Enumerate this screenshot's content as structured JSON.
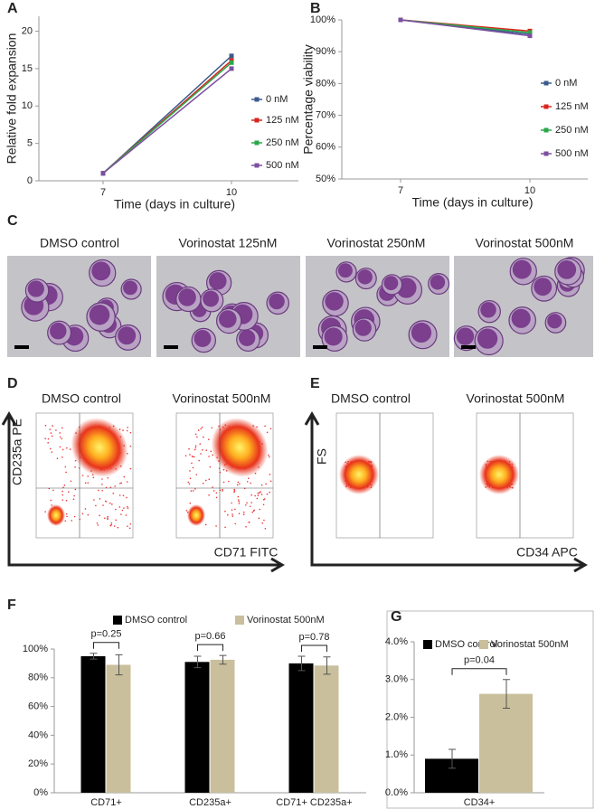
{
  "chart_data": [
    {
      "type": "line",
      "label": "A",
      "xlabel": "Time (days in culture)",
      "ylabel": "Relative fold expansion",
      "categories": [
        "7",
        "10"
      ],
      "ylim": [
        0,
        22
      ],
      "yticks": [
        0,
        5,
        10,
        15,
        20
      ],
      "series": [
        {
          "name": "0 nM",
          "color": "#3a5b8c",
          "values": [
            1,
            16.7
          ]
        },
        {
          "name": "125 nM",
          "color": "#d9261c",
          "values": [
            1,
            16.1
          ]
        },
        {
          "name": "250 nM",
          "color": "#2aa84a",
          "values": [
            1,
            15.8
          ]
        },
        {
          "name": "500 nM",
          "color": "#7e4fa0",
          "values": [
            1,
            15.0
          ]
        }
      ]
    },
    {
      "type": "line",
      "label": "B",
      "xlabel": "Time (days in culture)",
      "ylabel": "Percentage viability",
      "categories": [
        "7",
        "10"
      ],
      "ylim": [
        50,
        100
      ],
      "yticks": [
        {
          "value": 50,
          "label": "50%"
        },
        {
          "value": 60,
          "label": "60%"
        },
        {
          "value": 70,
          "label": "70%"
        },
        {
          "value": 80,
          "label": "80%"
        },
        {
          "value": 90,
          "label": "90%"
        },
        {
          "value": 100,
          "label": "100%"
        }
      ],
      "series": [
        {
          "name": "0 nM",
          "color": "#3a5b8c",
          "values": [
            100,
            95.5
          ]
        },
        {
          "name": "125 nM",
          "color": "#d9261c",
          "values": [
            100,
            96.5
          ]
        },
        {
          "name": "250 nM",
          "color": "#2aa84a",
          "values": [
            100,
            96
          ]
        },
        {
          "name": "500 nM",
          "color": "#7e4fa0",
          "values": [
            100,
            95
          ]
        }
      ]
    },
    {
      "type": "bar",
      "label": "F",
      "categories": [
        "CD71+",
        "CD235a+",
        "CD71+ CD235a+"
      ],
      "pvalues": [
        "p=0.25",
        "p=0.66",
        "p=0.78"
      ],
      "ylim": [
        0,
        100
      ],
      "yticks": [
        {
          "value": 0,
          "label": "0%"
        },
        {
          "value": 20,
          "label": "20%"
        },
        {
          "value": 40,
          "label": "40%"
        },
        {
          "value": 60,
          "label": "60%"
        },
        {
          "value": 80,
          "label": "80%"
        },
        {
          "value": 100,
          "label": "100%"
        }
      ],
      "series": [
        {
          "name": "DMSO control",
          "color": "#000000",
          "values": [
            95,
            91,
            90
          ],
          "errors": [
            2,
            4,
            5
          ]
        },
        {
          "name": "Vorinostat 500nM",
          "color": "#c9bf9c",
          "values": [
            89,
            92.5,
            88.5
          ],
          "errors": [
            7,
            3,
            6
          ]
        }
      ]
    },
    {
      "type": "bar",
      "label": "G",
      "categories": [
        "CD34+"
      ],
      "pvalues": [
        "p=0.04"
      ],
      "ylim": [
        0,
        4
      ],
      "yticks": [
        {
          "value": 0,
          "label": "0.0%"
        },
        {
          "value": 1,
          "label": "1.0%"
        },
        {
          "value": 2,
          "label": "2.0%"
        },
        {
          "value": 3,
          "label": "3.0%"
        },
        {
          "value": 4,
          "label": "4.0%"
        }
      ],
      "series": [
        {
          "name": "DMSO control",
          "color": "#000000",
          "values": [
            0.9
          ],
          "errors": [
            0.25
          ]
        },
        {
          "name": "Vorinostat 500nM",
          "color": "#c9bf9c",
          "values": [
            2.62
          ],
          "errors": [
            0.38
          ]
        }
      ]
    }
  ],
  "panel_c": {
    "label": "C",
    "titles": [
      "DMSO control",
      "Vorinostat 125nM",
      "Vorinostat 250nM",
      "Vorinostat  500nM"
    ]
  },
  "panel_d": {
    "label": "D",
    "titles": [
      "DMSO control",
      "Vorinostat  500nM"
    ],
    "ylabel": "CD235a PE",
    "xlabel": "CD71 FITC"
  },
  "panel_e": {
    "label": "E",
    "titles": [
      "DMSO control",
      "Vorinostat  500nM"
    ],
    "ylabel": "FS",
    "xlabel": "CD34 APC"
  }
}
